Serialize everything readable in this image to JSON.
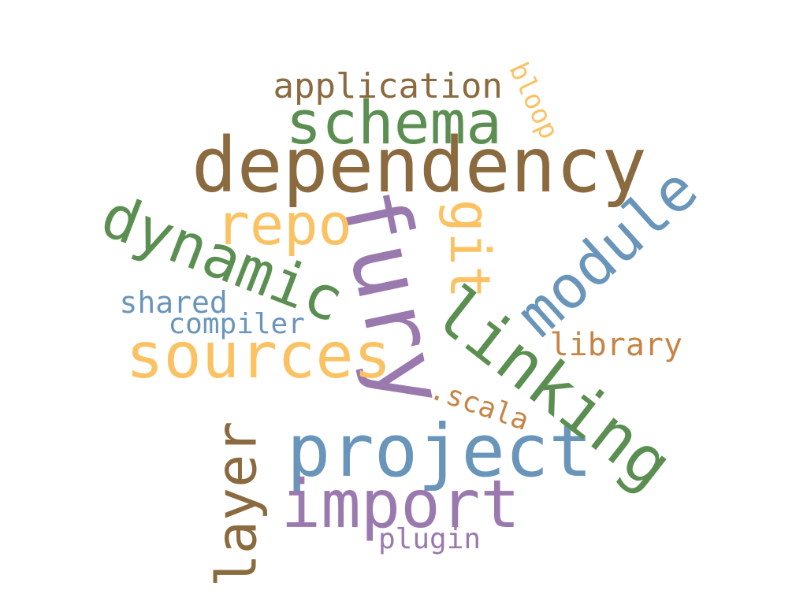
{
  "palette": {
    "brown": "#8a6a3e",
    "green": "#5b8f51",
    "purple": "#9a79ae",
    "blue": "#6a95bb",
    "gold": "#fbc264",
    "orange": "#c68445"
  },
  "words": [
    {
      "id": "fury",
      "text": "fury",
      "color": "purple",
      "rotated": true
    },
    {
      "id": "dependency",
      "text": "dependency",
      "color": "brown",
      "rotated": false
    },
    {
      "id": "project",
      "text": "project",
      "color": "blue",
      "rotated": false
    },
    {
      "id": "sources",
      "text": "sources",
      "color": "gold",
      "rotated": false
    },
    {
      "id": "linking",
      "text": "linking",
      "color": "green",
      "rotated": true
    },
    {
      "id": "import",
      "text": "import",
      "color": "purple",
      "rotated": false
    },
    {
      "id": "schema",
      "text": "schema",
      "color": "green",
      "rotated": false
    },
    {
      "id": "dynamic",
      "text": "dynamic",
      "color": "green",
      "rotated": true
    },
    {
      "id": "module",
      "text": "module",
      "color": "blue",
      "rotated": true
    },
    {
      "id": "layer",
      "text": "layer",
      "color": "brown",
      "rotated": true
    },
    {
      "id": "repo",
      "text": "repo",
      "color": "gold",
      "rotated": false
    },
    {
      "id": "git",
      "text": "git",
      "color": "gold",
      "rotated": true
    },
    {
      "id": "application",
      "text": "application",
      "color": "brown",
      "rotated": false
    },
    {
      "id": "library",
      "text": "library",
      "color": "orange",
      "rotated": false
    },
    {
      "id": "compiler",
      "text": "compiler",
      "color": "blue",
      "rotated": false
    },
    {
      "id": "shared",
      "text": "shared",
      "color": "blue",
      "rotated": false
    },
    {
      "id": "plugin",
      "text": "plugin",
      "color": "purple",
      "rotated": false
    },
    {
      "id": "scala",
      "text": ".scala",
      "color": "orange",
      "rotated": true
    },
    {
      "id": "bloop",
      "text": "bloop",
      "color": "gold",
      "rotated": true
    }
  ]
}
